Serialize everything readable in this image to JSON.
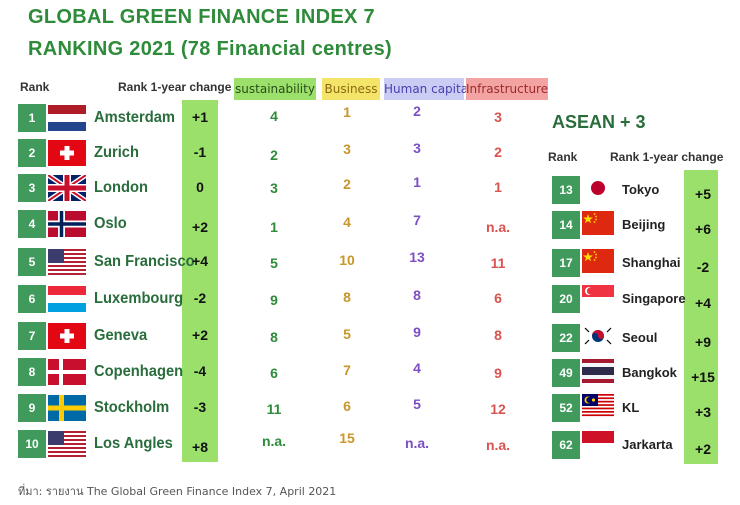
{
  "title_line1": "GLOBAL GREEN FINANCE INDEX 7",
  "title_line2": "RANKING 2021 (78  Financial centres)",
  "headers": {
    "rank": "Rank",
    "rank_change": "Rank 1-year change",
    "sustainability": "sustainability",
    "business": "Business",
    "human_capital": "Human capital",
    "infrastructure": "Infrastructure"
  },
  "header_colors": {
    "sustainability": "#9be06b",
    "business": "#f5e46a",
    "human_capital": "#c9cdf3",
    "infrastructure": "#f4a3a3"
  },
  "rows": [
    {
      "rank": "1",
      "city": "Amsterdam",
      "flag": "netherlands-flag-icon",
      "change": "+1",
      "sustainability": "4",
      "business": "1",
      "human_capital": "2",
      "infrastructure": "3"
    },
    {
      "rank": "2",
      "city": "Zurich",
      "flag": "switzerland-flag-icon",
      "change": "-1",
      "sustainability": "2",
      "business": "3",
      "human_capital": "3",
      "infrastructure": "2"
    },
    {
      "rank": "3",
      "city": "London",
      "flag": "uk-flag-icon",
      "change": "0",
      "sustainability": "3",
      "business": "2",
      "human_capital": "1",
      "infrastructure": "1"
    },
    {
      "rank": "4",
      "city": "Oslo",
      "flag": "norway-flag-icon",
      "change": "+2",
      "sustainability": "1",
      "business": "4",
      "human_capital": "7",
      "infrastructure": "n.a."
    },
    {
      "rank": "5",
      "city": "San Francisco",
      "flag": "usa-flag-icon",
      "change": "+4",
      "sustainability": "5",
      "business": "10",
      "human_capital": "13",
      "infrastructure": "11"
    },
    {
      "rank": "6",
      "city": "Luxembourg",
      "flag": "luxembourg-flag-icon",
      "change": "-2",
      "sustainability": "9",
      "business": "8",
      "human_capital": "8",
      "infrastructure": "6"
    },
    {
      "rank": "7",
      "city": "Geneva",
      "flag": "switzerland-flag-icon",
      "change": "+2",
      "sustainability": "8",
      "business": "5",
      "human_capital": "9",
      "infrastructure": "8"
    },
    {
      "rank": "8",
      "city": "Copenhagen",
      "flag": "denmark-flag-icon",
      "change": "-4",
      "sustainability": "6",
      "business": "7",
      "human_capital": "4",
      "infrastructure": "9"
    },
    {
      "rank": "9",
      "city": "Stockholm",
      "flag": "sweden-flag-icon",
      "change": "-3",
      "sustainability": "11",
      "business": "6",
      "human_capital": "5",
      "infrastructure": "12"
    },
    {
      "rank": "10",
      "city": "Los Angles",
      "flag": "usa-flag-icon",
      "change": "+8",
      "sustainability": "n.a.",
      "business": "15",
      "human_capital": "n.a.",
      "infrastructure": "n.a."
    }
  ],
  "asean": {
    "title": "ASEAN + 3",
    "rank_header": "Rank",
    "change_header": "Rank 1-year change",
    "rows": [
      {
        "rank": "13",
        "city": "Tokyo",
        "flag": "japan-flag-icon",
        "change": "+5"
      },
      {
        "rank": "14",
        "city": "Beijing",
        "flag": "china-flag-icon",
        "change": "+6"
      },
      {
        "rank": "17",
        "city": "Shanghai",
        "flag": "china-flag-icon",
        "change": "-2"
      },
      {
        "rank": "20",
        "city": "Singapore",
        "flag": "singapore-flag-icon",
        "change": "+4"
      },
      {
        "rank": "22",
        "city": "Seoul",
        "flag": "south-korea-flag-icon",
        "change": "+9"
      },
      {
        "rank": "49",
        "city": "Bangkok",
        "flag": "thailand-flag-icon",
        "change": "+15"
      },
      {
        "rank": "52",
        "city": "KL",
        "flag": "malaysia-flag-icon",
        "change": "+3"
      },
      {
        "rank": "62",
        "city": "Jarkarta",
        "flag": "indonesia-flag-icon",
        "change": "+2"
      }
    ]
  },
  "source": "ที่มา: รายงาน The Global Green Finance Index 7,  April 2021"
}
